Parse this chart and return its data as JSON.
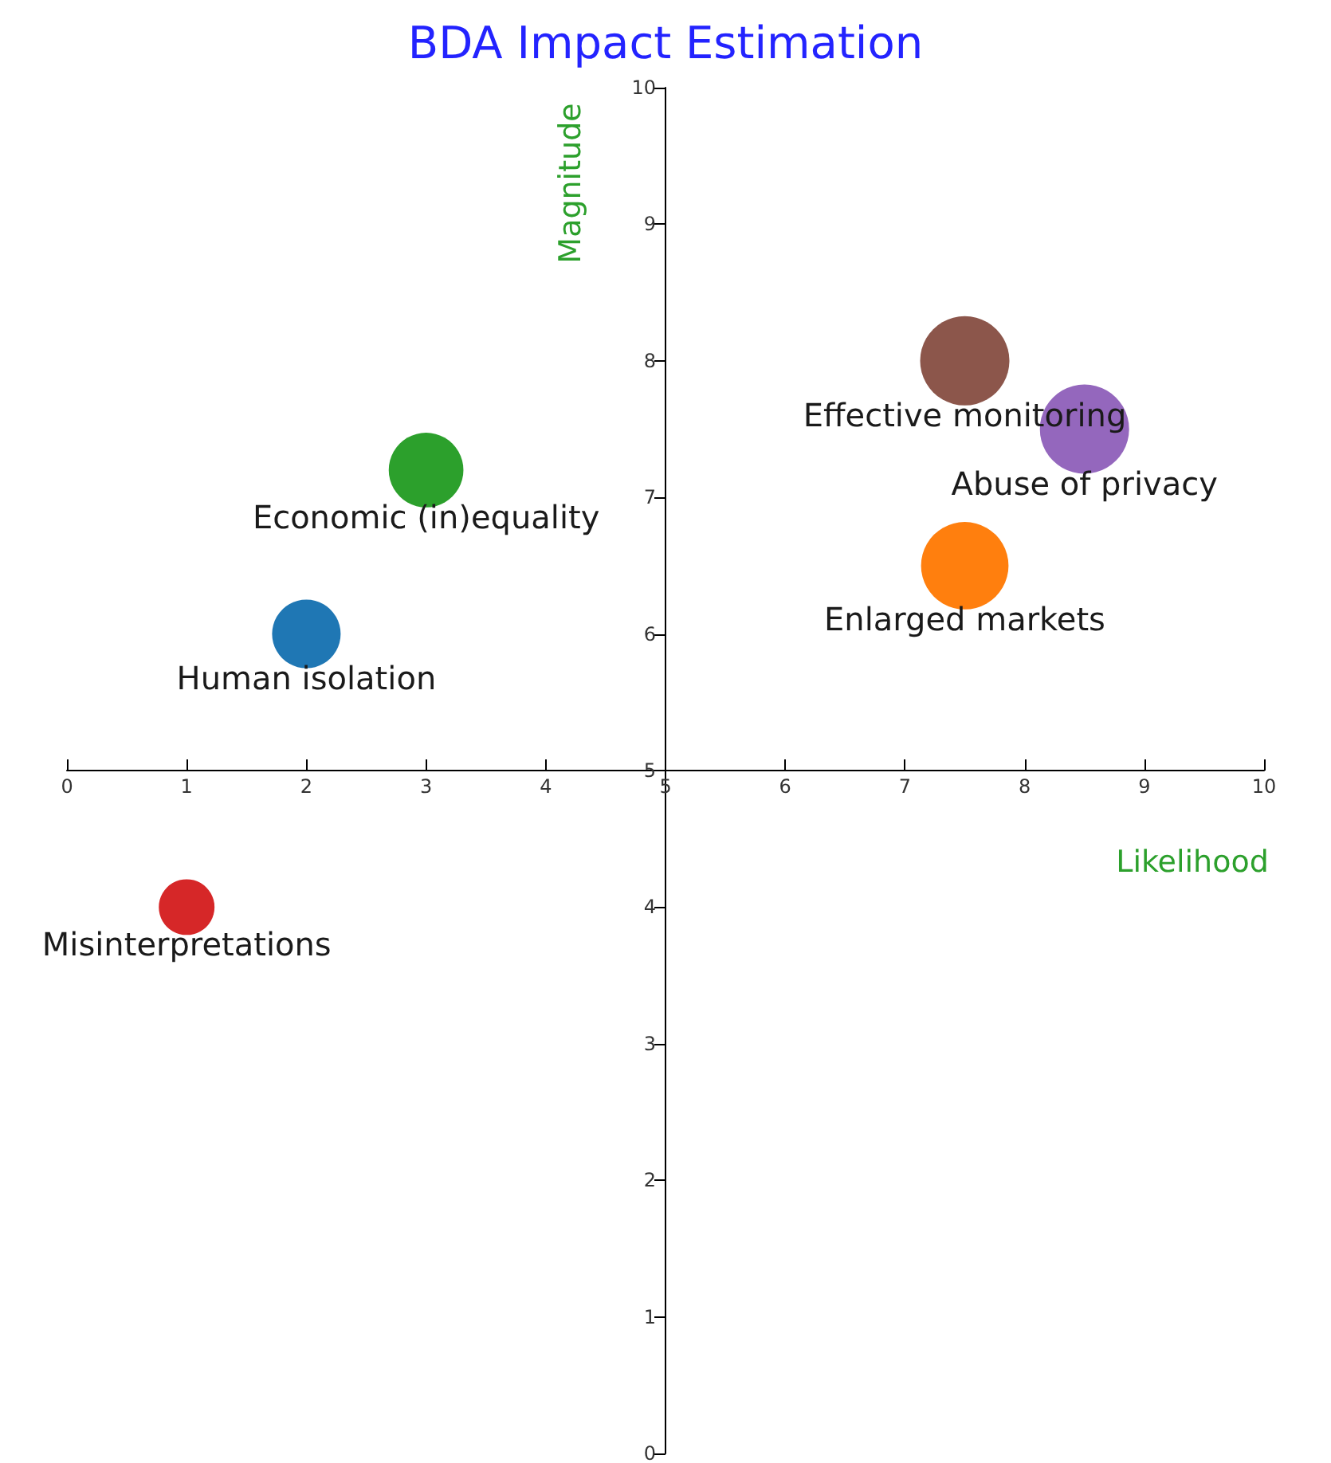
{
  "chart_data": {
    "type": "bubble",
    "title": "BDA Impact Estimation",
    "xlabel": "Likelihood",
    "ylabel": "Magnitude",
    "xlim": [
      0,
      10
    ],
    "ylim": [
      0,
      10
    ],
    "xticks": [
      0,
      1,
      2,
      3,
      4,
      5,
      6,
      7,
      8,
      9,
      10
    ],
    "yticks": [
      0,
      1,
      2,
      3,
      4,
      5,
      6,
      7,
      8,
      9,
      10
    ],
    "grid": false,
    "legend": false,
    "series": [
      {
        "name": "Misinterpretations",
        "color": "#d62728",
        "x": [
          1
        ],
        "values": [
          4
        ],
        "sizes": [
          0.39
        ]
      },
      {
        "name": "Human isolation",
        "color": "#1f77b4",
        "x": [
          2
        ],
        "values": [
          6
        ],
        "sizes": [
          0.59
        ]
      },
      {
        "name": "Economic (in)equality",
        "color": "#2ca02c",
        "x": [
          3
        ],
        "values": [
          7.2
        ],
        "sizes": [
          0.7
        ]
      },
      {
        "name": "Effective monitoring",
        "color": "#8c564b",
        "x": [
          7.5
        ],
        "values": [
          8
        ],
        "sizes": [
          1
        ]
      },
      {
        "name": "Abuse of privacy",
        "color": "#9467bd",
        "x": [
          8.5
        ],
        "values": [
          7.5
        ],
        "sizes": [
          1
        ]
      },
      {
        "name": "Enlarged markets",
        "color": "#ff7f0e",
        "x": [
          7.5
        ],
        "values": [
          6.5
        ],
        "sizes": [
          0.96
        ]
      }
    ]
  }
}
